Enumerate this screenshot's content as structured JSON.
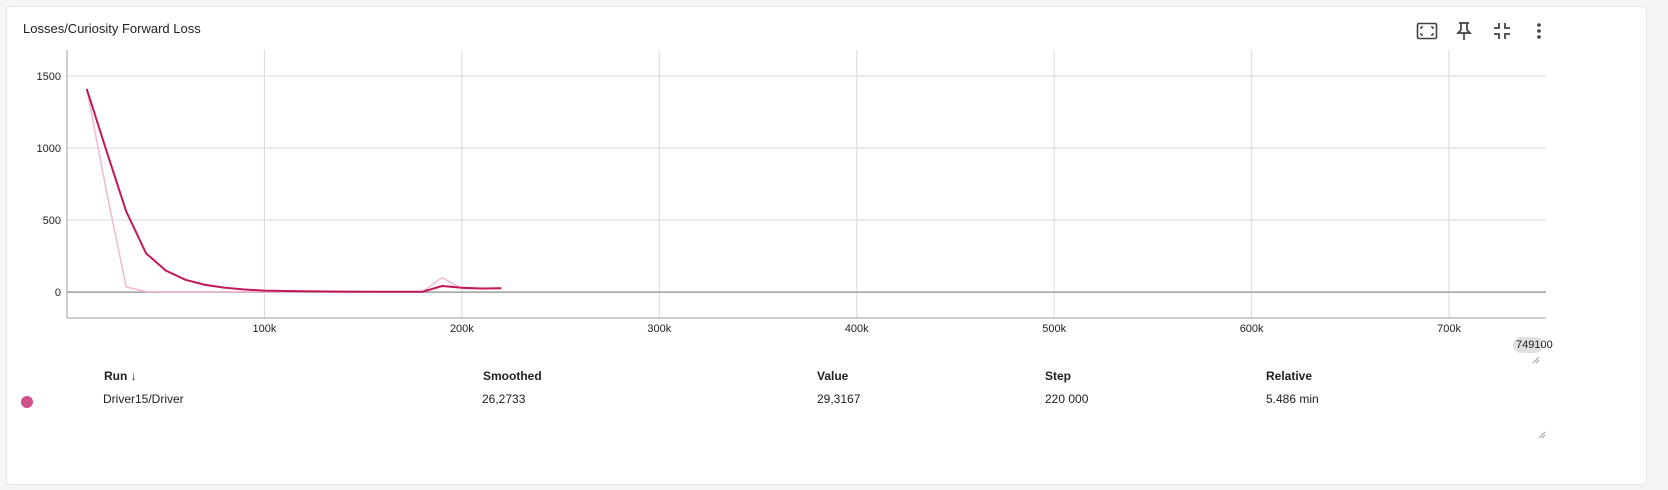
{
  "card": {
    "title": "Losses/Curiosity Forward Loss"
  },
  "toolbar": {
    "icons": [
      "fit-domain-icon",
      "pin-icon",
      "collapse-icon",
      "more-vert-icon"
    ]
  },
  "colors": {
    "smoothed": "#c2185b",
    "raw": "#f1b8d4",
    "dot": "#d0508a",
    "grid": "#dadada",
    "axis": "#9e9e9e"
  },
  "chart_data": {
    "type": "line",
    "title": "Losses/Curiosity Forward Loss",
    "xlabel": "",
    "ylabel": "",
    "xlim": [
      0,
      749100
    ],
    "ylim": [
      -180,
      1680
    ],
    "x_ticks": [
      "100k",
      "200k",
      "300k",
      "400k",
      "500k",
      "600k",
      "700k"
    ],
    "x_tick_values": [
      100000,
      200000,
      300000,
      400000,
      500000,
      600000,
      700000
    ],
    "y_ticks": [
      "1500",
      "1000",
      "500",
      "0"
    ],
    "y_tick_values": [
      1500,
      1000,
      500,
      0
    ],
    "grid": true,
    "x_max_label": "749100",
    "series": [
      {
        "name": "Driver15/Driver",
        "role": "smoothed",
        "x": [
          10000,
          20000,
          30000,
          40000,
          50000,
          60000,
          70000,
          80000,
          90000,
          100000,
          120000,
          140000,
          160000,
          180000,
          190000,
          200000,
          210000,
          220000
        ],
        "y": [
          1410,
          980,
          560,
          270,
          150,
          85,
          50,
          30,
          18,
          10,
          5,
          3,
          2,
          2,
          42,
          30,
          25,
          26.27
        ]
      },
      {
        "name": "Driver15/Driver",
        "role": "raw",
        "x": [
          10000,
          20000,
          30000,
          40000,
          50000,
          60000,
          80000,
          100000,
          140000,
          180000,
          190000,
          200000,
          210000,
          220000
        ],
        "y": [
          1410,
          700,
          35,
          3,
          2,
          2,
          2,
          2,
          2,
          2,
          100,
          25,
          22,
          29.32
        ]
      }
    ]
  },
  "table": {
    "headers": {
      "run": "Run",
      "sort_arrow": "↓",
      "smoothed": "Smoothed",
      "value": "Value",
      "step": "Step",
      "relative": "Relative"
    },
    "rows": [
      {
        "run": "Driver15/Driver",
        "smoothed": "26,2733",
        "value": "29,3167",
        "step": "220 000",
        "relative": "5.486 min"
      }
    ]
  }
}
